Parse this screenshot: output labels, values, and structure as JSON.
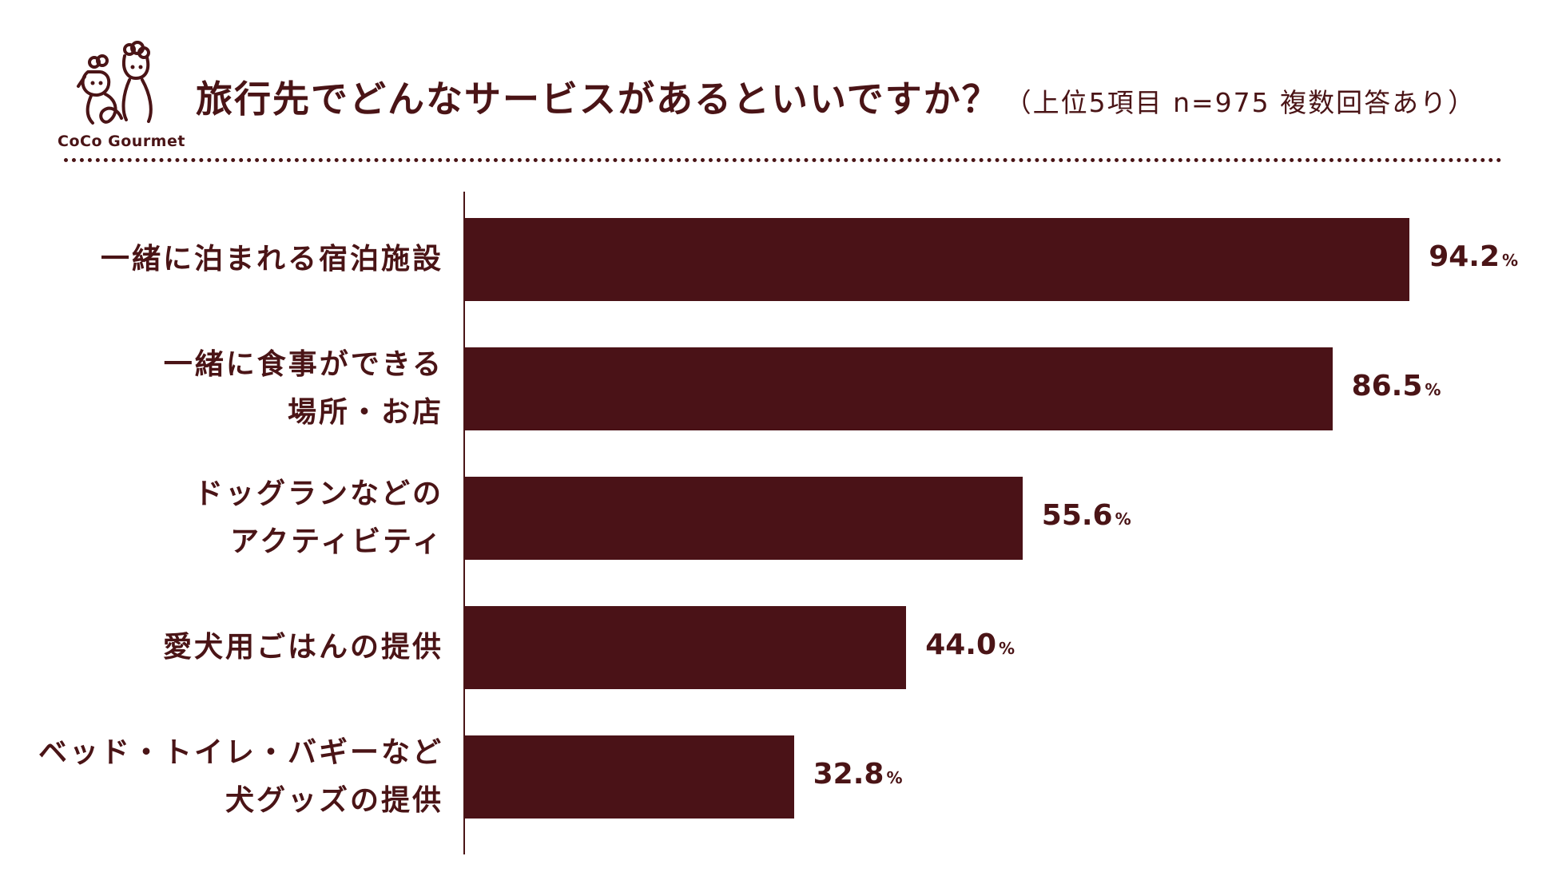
{
  "header": {
    "logo_text": "CoCo Gourmet",
    "title": "旅行先でどんなサービスがあるといいですか？",
    "subtitle": "（上位5項目 n=975 複数回答あり）"
  },
  "colors": {
    "accent": "#4a1217",
    "text": "#4a1416",
    "background": "#ffffff"
  },
  "chart_data": {
    "type": "bar",
    "orientation": "horizontal",
    "categories": [
      [
        "一緒に泊まれる宿泊施設"
      ],
      [
        "一緒に食事ができる",
        "場所・お店"
      ],
      [
        "ドッグランなどの",
        "アクティビティ"
      ],
      [
        "愛犬用ごはんの提供"
      ],
      [
        "ベッド・トイレ・バギーなど",
        "犬グッズの提供"
      ]
    ],
    "values": [
      94.2,
      86.5,
      55.6,
      44.0,
      32.8
    ],
    "value_labels": [
      "94.2",
      "86.5",
      "55.6",
      "44.0",
      "32.8"
    ],
    "unit": "%",
    "xlim": [
      0,
      100
    ],
    "grid": false,
    "legend": "none"
  }
}
